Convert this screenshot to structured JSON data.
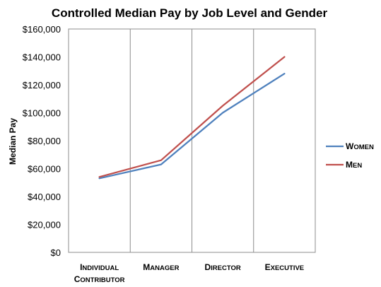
{
  "chart_data": {
    "type": "line",
    "title": "Controlled Median Pay by Job Level and Gender",
    "xlabel": "",
    "ylabel": "Median Pay",
    "categories": [
      [
        "Individual",
        "Contributor"
      ],
      [
        "Manager"
      ],
      [
        "Director"
      ],
      [
        "Executive"
      ]
    ],
    "series": [
      {
        "name": "Women",
        "values": [
          53000,
          63000,
          100000,
          128000
        ],
        "color": "#4F81BD"
      },
      {
        "name": "Men",
        "values": [
          54000,
          66000,
          105000,
          140000
        ],
        "color": "#C0504D"
      }
    ],
    "ylim": [
      0,
      160000
    ],
    "yticks": [
      {
        "value": 0,
        "label": "$0"
      },
      {
        "value": 20000,
        "label": "$20,000"
      },
      {
        "value": 40000,
        "label": "$40,000"
      },
      {
        "value": 60000,
        "label": "$60,000"
      },
      {
        "value": 80000,
        "label": "$80,000"
      },
      {
        "value": 100000,
        "label": "$100,000"
      },
      {
        "value": 120000,
        "label": "$120,000"
      },
      {
        "value": 140000,
        "label": "$140,000"
      },
      {
        "value": 160000,
        "label": "$160,000"
      }
    ],
    "grid": "vertical between categories",
    "legend": "right"
  }
}
